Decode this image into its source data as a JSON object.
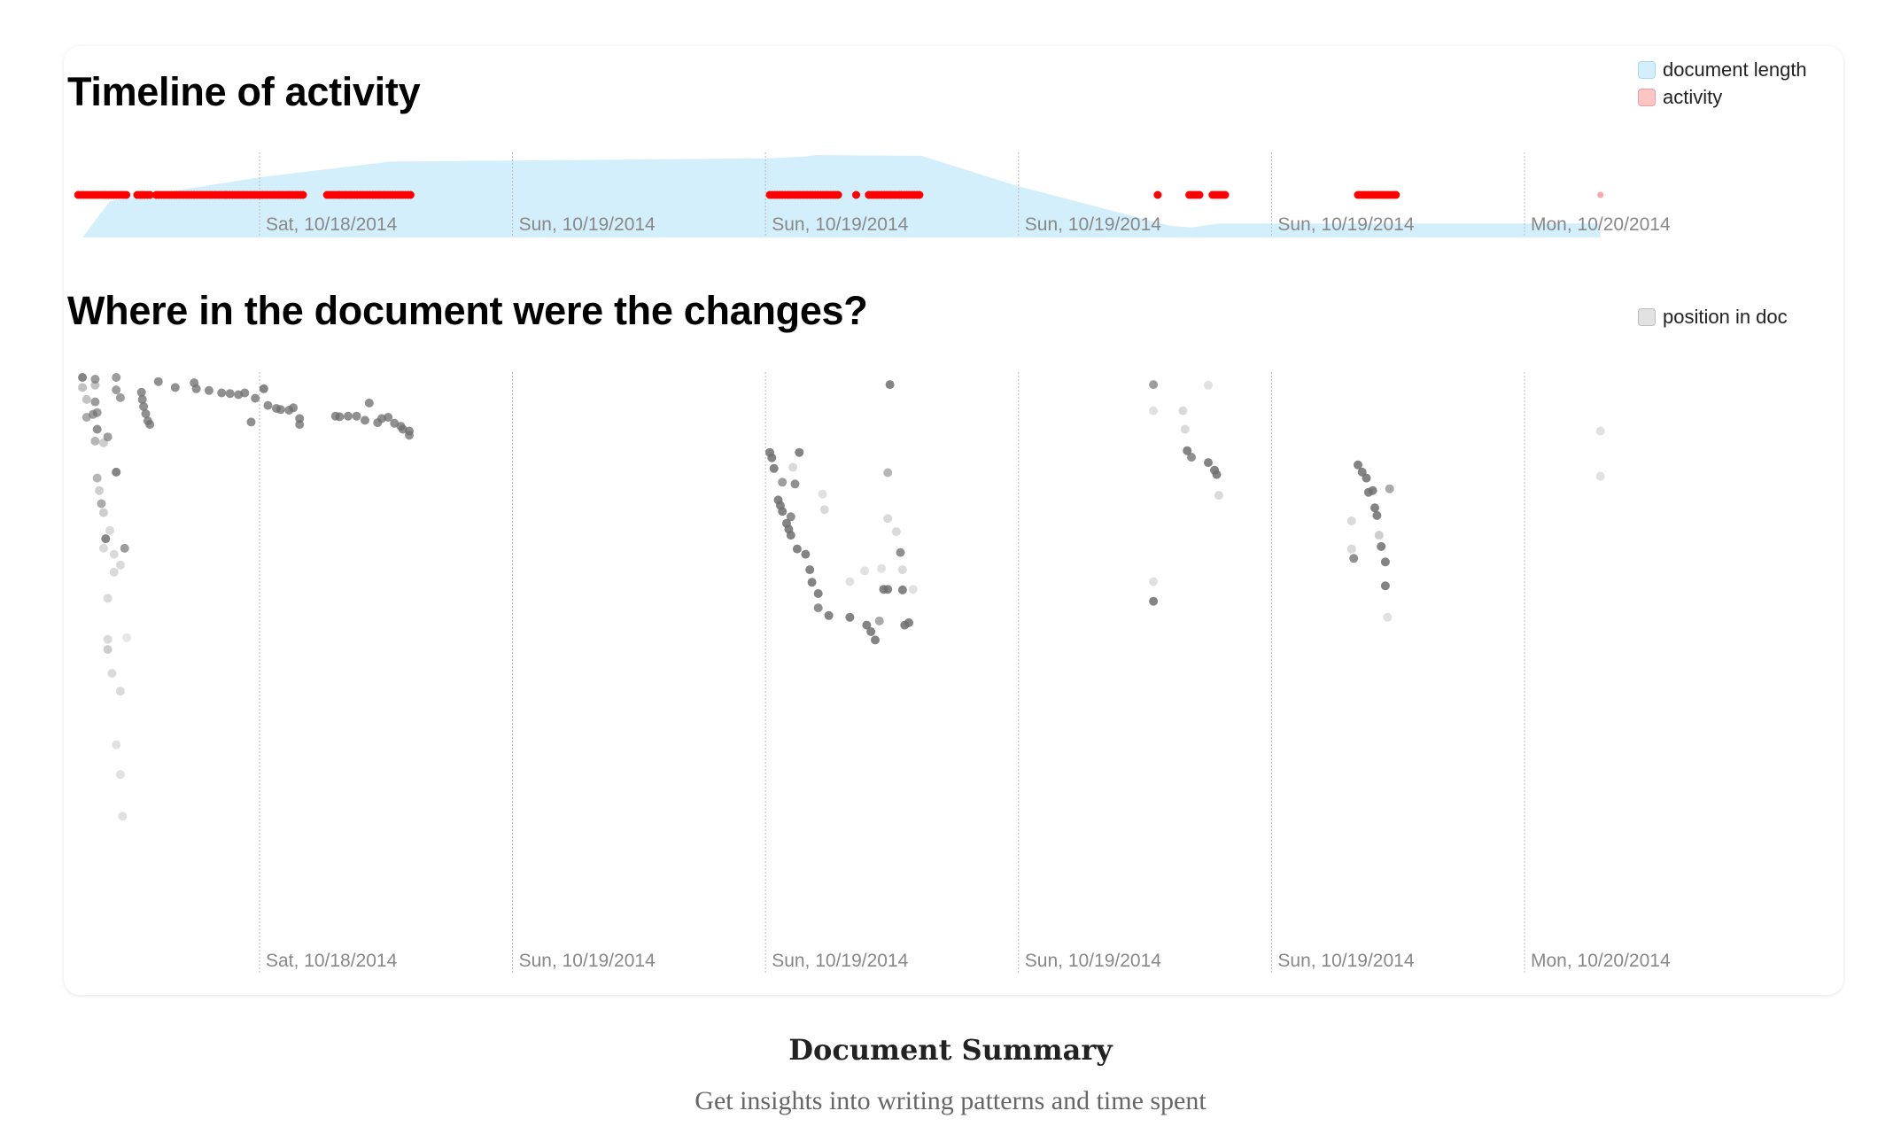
{
  "colors": {
    "length_fill": "#d4effc",
    "length_border": "#a9d9f2",
    "activity": "#ff0000",
    "activity_swatch": "#ffc4c4",
    "activity_swatch_border": "#e6a0a0",
    "position": "#6f6f6f",
    "position_swatch": "#e2e2e2",
    "position_swatch_border": "#bdbdbd",
    "grid": "#bbbbbb",
    "tick_text": "#888888"
  },
  "timeline": {
    "title": "Timeline of activity",
    "legend": [
      {
        "label": "document length"
      },
      {
        "label": "activity"
      }
    ]
  },
  "positions": {
    "title": "Where in the document were the changes?",
    "legend": [
      {
        "label": "position in doc"
      }
    ]
  },
  "footer": {
    "title": "Document Summary",
    "subtitle": "Get insights into writing patterns and time spent"
  },
  "chart_data": [
    {
      "type": "area",
      "title": "Timeline of activity",
      "x_unit": "hours since Sat 10/18/2014 00:00",
      "xlim": [
        13.5,
        51
      ],
      "ticks": [
        {
          "x": 18,
          "label": "Sat, 10/18/2014"
        },
        {
          "x": 24,
          "label": "Sun, 10/19/2014"
        },
        {
          "x": 30,
          "label": "Sun, 10/19/2014"
        },
        {
          "x": 36,
          "label": "Sun, 10/19/2014"
        },
        {
          "x": 42,
          "label": "Sun, 10/19/2014"
        },
        {
          "x": 48,
          "label": "Mon, 10/20/2014"
        }
      ],
      "grid": true,
      "legend_placement": "top-right",
      "series": [
        {
          "name": "document length",
          "unit": "% of max",
          "points": [
            [
              13.8,
              0
            ],
            [
              14.45,
              44
            ],
            [
              18,
              73
            ],
            [
              21.1,
              92
            ],
            [
              30,
              96
            ],
            [
              30.9,
              98
            ],
            [
              31.2,
              100
            ],
            [
              33.7,
              99
            ],
            [
              36,
              62
            ],
            [
              39.6,
              14
            ],
            [
              40.1,
              12
            ],
            [
              40.75,
              17
            ],
            [
              49.8,
              17
            ]
          ]
        },
        {
          "name": "activity",
          "spans": [
            [
              13.7,
              14.85
            ],
            [
              15.1,
              15.45
            ],
            [
              15.55,
              19.05
            ],
            [
              19.6,
              21.6
            ],
            [
              30.1,
              31.75
            ],
            [
              32.15,
              32.15
            ],
            [
              32.45,
              33.65
            ],
            [
              39.3,
              39.3
            ],
            [
              40.05,
              40.3
            ],
            [
              40.6,
              40.9
            ],
            [
              44.05,
              45.0
            ]
          ],
          "faint_points": [
            49.8
          ]
        }
      ]
    },
    {
      "type": "scatter",
      "title": "Where in the document were the changes?",
      "x_unit": "hours since Sat 10/18/2014 00:00",
      "y_unit": "position in doc (% from top)",
      "xlim": [
        13.5,
        51
      ],
      "ylim": [
        0,
        100
      ],
      "ticks": [
        {
          "x": 18,
          "label": "Sat, 10/18/2014"
        },
        {
          "x": 24,
          "label": "Sun, 10/19/2014"
        },
        {
          "x": 30,
          "label": "Sun, 10/19/2014"
        },
        {
          "x": 36,
          "label": "Sun, 10/19/2014"
        },
        {
          "x": 42,
          "label": "Sun, 10/19/2014"
        },
        {
          "x": 48,
          "label": "Mon, 10/20/2014"
        }
      ],
      "legend_placement": "top-right",
      "series": [
        {
          "name": "position in doc",
          "points_x_y_opacity": [
            [
              13.8,
              0.3,
              1
            ],
            [
              13.8,
              2,
              0.5
            ],
            [
              14.1,
              0.6,
              0.8
            ],
            [
              14.1,
              1.6,
              0.5
            ],
            [
              14.6,
              0.3,
              0.8
            ],
            [
              14.6,
              2.4,
              0.8
            ],
            [
              14.7,
              3.7,
              0.8
            ],
            [
              13.9,
              4,
              0.5
            ],
            [
              14.1,
              4.4,
              0.8
            ],
            [
              13.9,
              7,
              0.7
            ],
            [
              14.05,
              6.5,
              0.8
            ],
            [
              14.15,
              6.2,
              0.8
            ],
            [
              14.15,
              9,
              0.9
            ],
            [
              14.4,
              10.3,
              0.8
            ],
            [
              14.1,
              11,
              0.6
            ],
            [
              14.3,
              11.3,
              0.4
            ],
            [
              14.6,
              16.2,
              1
            ],
            [
              14.15,
              17.2,
              0.6
            ],
            [
              14.2,
              19.3,
              0.4
            ],
            [
              14.25,
              21.5,
              0.7
            ],
            [
              14.3,
              23,
              0.4
            ],
            [
              14.45,
              26,
              0.3
            ],
            [
              14.35,
              27.4,
              1
            ],
            [
              14.8,
              29,
              0.8
            ],
            [
              14.3,
              29,
              0.3
            ],
            [
              14.55,
              30,
              0.3
            ],
            [
              14.7,
              31.8,
              0.3
            ],
            [
              14.55,
              33,
              0.3
            ],
            [
              14.4,
              37.4,
              0.3
            ],
            [
              14.4,
              44.3,
              0.3
            ],
            [
              14.4,
              46,
              0.4
            ],
            [
              14.85,
              44,
              0.2
            ],
            [
              14.5,
              50,
              0.3
            ],
            [
              14.7,
              53,
              0.3
            ],
            [
              14.6,
              62,
              0.25
            ],
            [
              14.7,
              67,
              0.25
            ],
            [
              14.75,
              74,
              0.25
            ],
            [
              15.2,
              2.8,
              0.9
            ],
            [
              15.22,
              4,
              0.9
            ],
            [
              15.25,
              5.2,
              0.9
            ],
            [
              15.3,
              6.4,
              0.9
            ],
            [
              15.35,
              7.6,
              0.9
            ],
            [
              15.4,
              8.2,
              0.9
            ],
            [
              15.6,
              1,
              0.9
            ],
            [
              16.0,
              2,
              0.9
            ],
            [
              16.45,
              1.2,
              0.9
            ],
            [
              16.5,
              2.2,
              0.9
            ],
            [
              16.8,
              2.5,
              0.9
            ],
            [
              17.1,
              2.9,
              0.9
            ],
            [
              17.3,
              3,
              0.9
            ],
            [
              17.5,
              3.2,
              0.9
            ],
            [
              17.65,
              2.9,
              0.9
            ],
            [
              17.9,
              3.8,
              0.9
            ],
            [
              18.1,
              2.2,
              1
            ],
            [
              18.2,
              5,
              0.9
            ],
            [
              18.4,
              5.5,
              0.9
            ],
            [
              18.5,
              5.7,
              0.9
            ],
            [
              18.7,
              5.8,
              0.9
            ],
            [
              18.8,
              5.4,
              0.9
            ],
            [
              18.95,
              7.2,
              0.9
            ],
            [
              18.95,
              8.2,
              0.9
            ],
            [
              17.8,
              7.8,
              0.9
            ],
            [
              19.8,
              6.8,
              0.9
            ],
            [
              19.9,
              6.9,
              0.9
            ],
            [
              20.1,
              6.8,
              0.9
            ],
            [
              20.3,
              6.8,
              0.9
            ],
            [
              20.5,
              7.5,
              0.9
            ],
            [
              20.6,
              4.6,
              0.9
            ],
            [
              20.8,
              7.9,
              0.9
            ],
            [
              20.9,
              7.2,
              0.9
            ],
            [
              21.05,
              7,
              0.9
            ],
            [
              21.2,
              8,
              0.9
            ],
            [
              21.35,
              8.5,
              0.9
            ],
            [
              21.4,
              9,
              0.9
            ],
            [
              21.55,
              9.3,
              0.9
            ],
            [
              21.55,
              10,
              0.9
            ],
            [
              30.1,
              12.9,
              1
            ],
            [
              30.15,
              13.8,
              1
            ],
            [
              30.2,
              15.6,
              1
            ],
            [
              30.4,
              17.9,
              0.8
            ],
            [
              30.7,
              18.2,
              0.9
            ],
            [
              30.8,
              12.9,
              1
            ],
            [
              30.65,
              15.4,
              0.3
            ],
            [
              30.3,
              20.9,
              1
            ],
            [
              30.35,
              21.8,
              1
            ],
            [
              30.4,
              22.8,
              1
            ],
            [
              30.5,
              24.8,
              1
            ],
            [
              30.55,
              25.8,
              1
            ],
            [
              30.6,
              26.8,
              1
            ],
            [
              30.75,
              29.1,
              1
            ],
            [
              30.95,
              30,
              1
            ],
            [
              31.05,
              32.6,
              1
            ],
            [
              31.1,
              34.7,
              1
            ],
            [
              31.25,
              36.6,
              1
            ],
            [
              31.25,
              39,
              0.9
            ],
            [
              31.5,
              40.3,
              1
            ],
            [
              32.0,
              40.6,
              1
            ],
            [
              32.4,
              41.9,
              1
            ],
            [
              32.5,
              43,
              1
            ],
            [
              32.6,
              44.4,
              1
            ],
            [
              32.7,
              41.2,
              0.7
            ],
            [
              32.8,
              35.9,
              1
            ],
            [
              32.9,
              35.9,
              1
            ],
            [
              33.25,
              36,
              1
            ],
            [
              33.3,
              41.9,
              1
            ],
            [
              33.4,
              41.5,
              1
            ],
            [
              33.2,
              29.7,
              0.9
            ],
            [
              32.95,
              1.5,
              1
            ],
            [
              32.9,
              16.3,
              0.6
            ],
            [
              30.6,
              23.7,
              0.9
            ],
            [
              31.35,
              19.9,
              0.25
            ],
            [
              31.4,
              22.5,
              0.3
            ],
            [
              32.35,
              32.8,
              0.25
            ],
            [
              32.0,
              34.6,
              0.25
            ],
            [
              32.75,
              32.4,
              0.25
            ],
            [
              32.9,
              24,
              0.3
            ],
            [
              33.1,
              26.2,
              0.3
            ],
            [
              33.25,
              32.6,
              0.3
            ],
            [
              33.5,
              35.9,
              0.25
            ],
            [
              39.2,
              1.5,
              0.8
            ],
            [
              39.2,
              5.9,
              0.25
            ],
            [
              39.9,
              5.9,
              0.3
            ],
            [
              40.5,
              1.6,
              0.25
            ],
            [
              39.95,
              9,
              0.3
            ],
            [
              40.0,
              12.6,
              1
            ],
            [
              40.1,
              13.7,
              0.9
            ],
            [
              40.5,
              14.6,
              1
            ],
            [
              40.65,
              15.9,
              1
            ],
            [
              40.7,
              16.6,
              1
            ],
            [
              40.75,
              20.1,
              0.3
            ],
            [
              39.2,
              34.6,
              0.25
            ],
            [
              39.2,
              37.9,
              1
            ],
            [
              44.05,
              15,
              1
            ],
            [
              44.15,
              16.2,
              1
            ],
            [
              44.25,
              17.2,
              1
            ],
            [
              44.3,
              19.6,
              1
            ],
            [
              44.4,
              19.3,
              1
            ],
            [
              44.45,
              22.2,
              1
            ],
            [
              44.5,
              23.5,
              1
            ],
            [
              44.6,
              28.7,
              1
            ],
            [
              44.7,
              31.3,
              1
            ],
            [
              44.7,
              35.3,
              1
            ],
            [
              44.8,
              19,
              0.7
            ],
            [
              43.95,
              30.7,
              0.9
            ],
            [
              43.9,
              24.4,
              0.3
            ],
            [
              43.9,
              29.1,
              0.3
            ],
            [
              44.75,
              40.6,
              0.25
            ],
            [
              44.55,
              26.8,
              0.4
            ],
            [
              49.8,
              9.3,
              0.25
            ],
            [
              49.8,
              16.9,
              0.25
            ]
          ]
        }
      ]
    }
  ]
}
